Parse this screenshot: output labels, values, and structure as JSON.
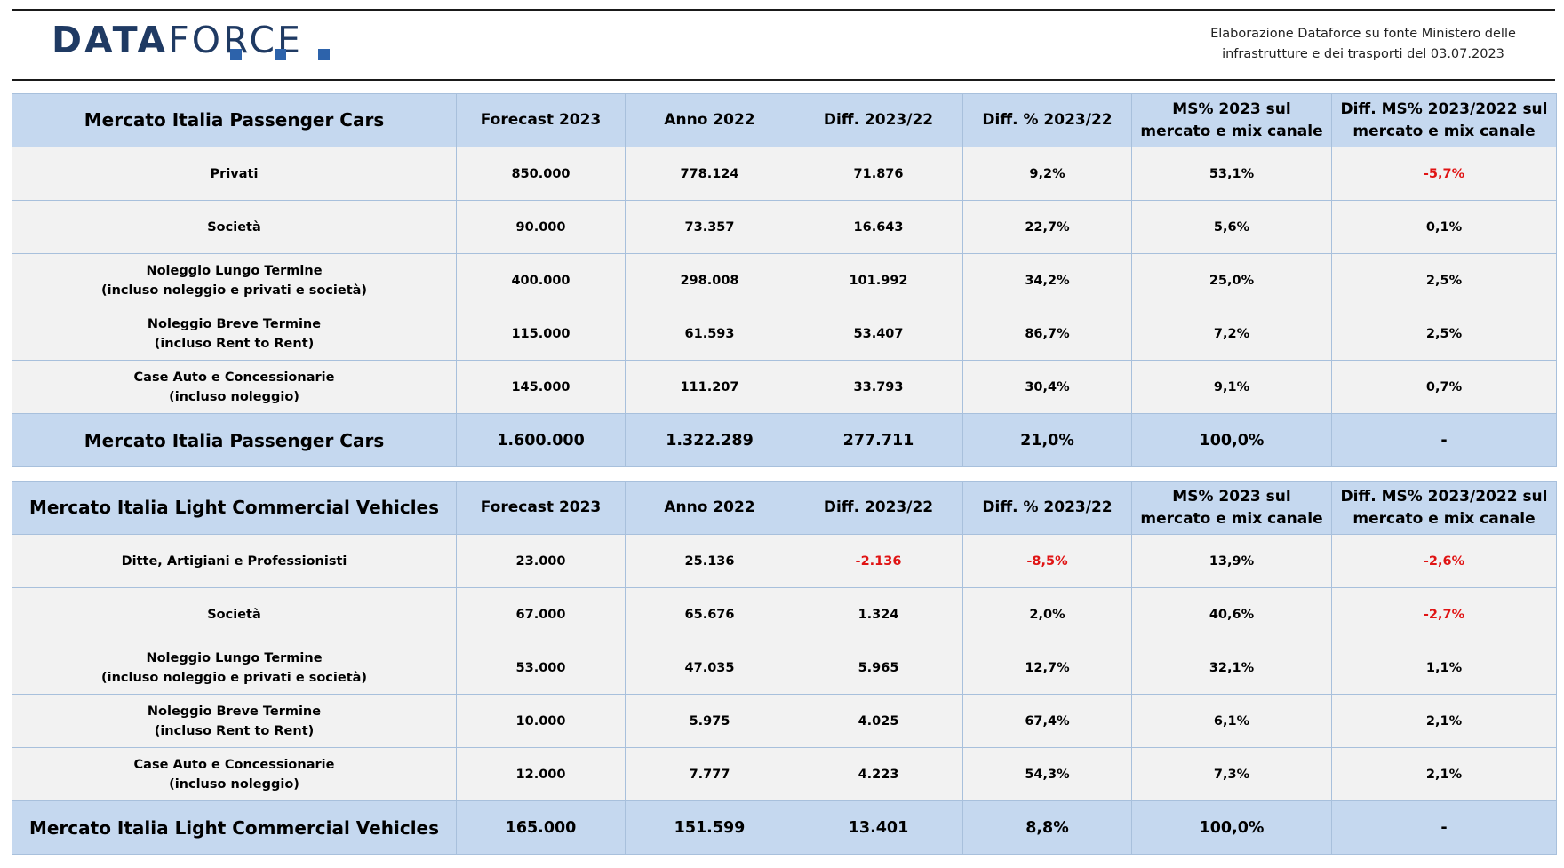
{
  "logo": {
    "text_a": "DATA",
    "text_b": "FORCE"
  },
  "source_note": {
    "line1": "Elaborazione Dataforce su fonte Ministero delle",
    "line2": "infrastrutture e dei trasporti del 03.07.2023"
  },
  "colors": {
    "accent": "#1f3a63",
    "header_fill": "#c5d8ef",
    "row_fill": "#f2f2f2",
    "negative": "#e01414"
  },
  "pc": {
    "header": [
      "Mercato Italia Passenger Cars",
      "Forecast 2023",
      "Anno 2022",
      "Diff. 2023/22",
      "Diff. % 2023/22",
      "MS% 2023 sul mercato e mix canale",
      "Diff. MS% 2023/2022 sul mercato e mix canale"
    ],
    "rows": [
      {
        "l1": "Privati",
        "l2": "",
        "v": [
          "850.000",
          "778.124",
          "71.876",
          "9,2%",
          "53,1%",
          "-5,7%"
        ]
      },
      {
        "l1": "Società",
        "l2": "",
        "v": [
          "90.000",
          "73.357",
          "16.643",
          "22,7%",
          "5,6%",
          "0,1%"
        ]
      },
      {
        "l1": "Noleggio Lungo Termine",
        "l2": "(incluso noleggio e privati e società)",
        "v": [
          "400.000",
          "298.008",
          "101.992",
          "34,2%",
          "25,0%",
          "2,5%"
        ]
      },
      {
        "l1": "Noleggio Breve Termine",
        "l2": "(incluso Rent to Rent)",
        "v": [
          "115.000",
          "61.593",
          "53.407",
          "86,7%",
          "7,2%",
          "2,5%"
        ]
      },
      {
        "l1": "Case Auto e Concessionarie",
        "l2": "(incluso noleggio)",
        "v": [
          "145.000",
          "111.207",
          "33.793",
          "30,4%",
          "9,1%",
          "0,7%"
        ]
      }
    ],
    "total": [
      "Mercato Italia Passenger Cars",
      "1.600.000",
      "1.322.289",
      "277.711",
      "21,0%",
      "100,0%",
      "-"
    ]
  },
  "lcv": {
    "header": [
      "Mercato Italia Light Commercial Vehicles",
      "Forecast 2023",
      "Anno 2022",
      "Diff. 2023/22",
      "Diff. % 2023/22",
      "MS% 2023 sul mercato e mix canale",
      "Diff. MS% 2023/2022 sul mercato e mix canale"
    ],
    "rows": [
      {
        "l1": "Ditte, Artigiani e Professionisti",
        "l2": "",
        "v": [
          "23.000",
          "25.136",
          "-2.136",
          "-8,5%",
          "13,9%",
          "-2,6%"
        ]
      },
      {
        "l1": "Società",
        "l2": "",
        "v": [
          "67.000",
          "65.676",
          "1.324",
          "2,0%",
          "40,6%",
          "-2,7%"
        ]
      },
      {
        "l1": "Noleggio Lungo Termine",
        "l2": "(incluso noleggio e privati e società)",
        "v": [
          "53.000",
          "47.035",
          "5.965",
          "12,7%",
          "32,1%",
          "1,1%"
        ]
      },
      {
        "l1": "Noleggio Breve Termine",
        "l2": "(incluso Rent to Rent)",
        "v": [
          "10.000",
          "5.975",
          "4.025",
          "67,4%",
          "6,1%",
          "2,1%"
        ]
      },
      {
        "l1": "Case Auto e Concessionarie",
        "l2": "(incluso noleggio)",
        "v": [
          "12.000",
          "7.777",
          "4.223",
          "54,3%",
          "7,3%",
          "2,1%"
        ]
      }
    ],
    "total": [
      "Mercato Italia Light Commercial Vehicles",
      "165.000",
      "151.599",
      "13.401",
      "8,8%",
      "100,0%",
      "-"
    ]
  }
}
